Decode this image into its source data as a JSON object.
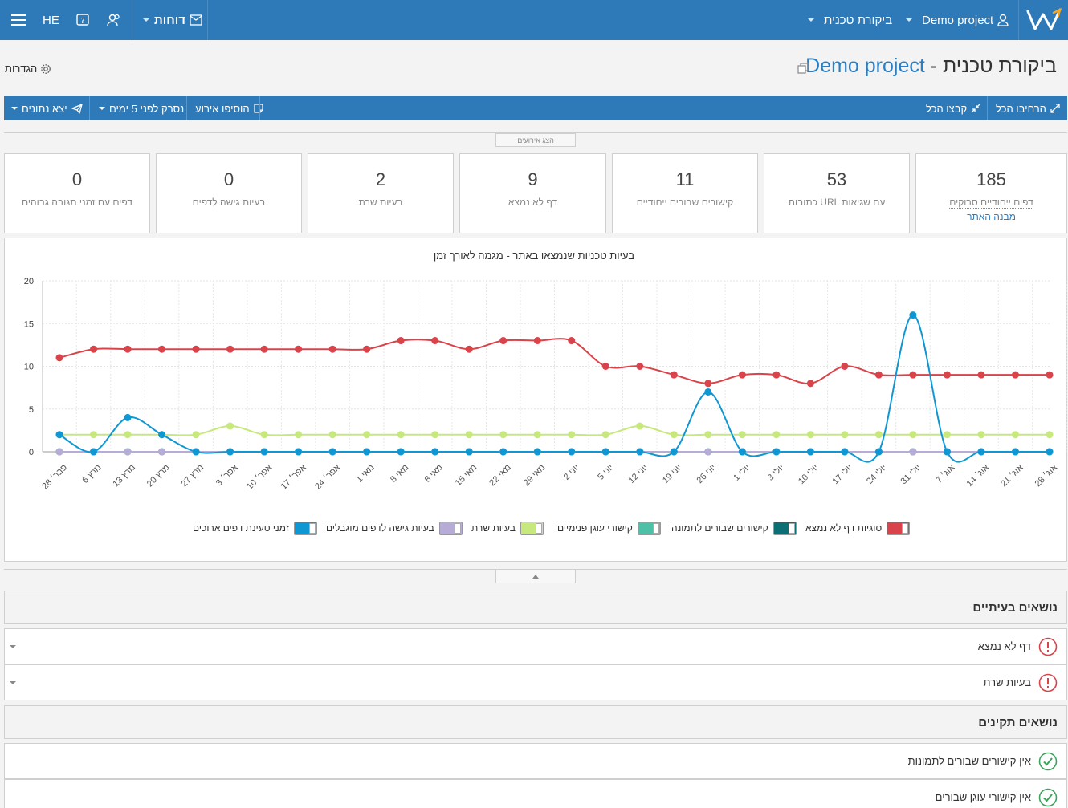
{
  "topbar": {
    "lang": "HE",
    "reports_label": "דוחות",
    "module_label": "ביקורת טכנית",
    "project_label": "Demo project"
  },
  "page": {
    "title_project": "Demo project",
    "title_rest": "ביקורת טכנית - ",
    "settings_label": "הגדרות"
  },
  "actions": {
    "export_label": "יצא נתונים",
    "crawl_label": "נסרק לפני 5 ימים",
    "add_event_label": "הוסיפו אירוע",
    "collapse_all_label": "קבצו הכל",
    "expand_all_label": "הרחיבו הכל"
  },
  "events_toggle_label": "הצג אירועים",
  "stats": [
    {
      "value": "185",
      "label": "דפים ייחודיים סרוקים",
      "sublabel": "מבנה האתר"
    },
    {
      "value": "53",
      "label": "כתובות URL עם שגיאות"
    },
    {
      "value": "11",
      "label": "קישורים שבורים ייחודיים"
    },
    {
      "value": "9",
      "label": "דף לא נמצא"
    },
    {
      "value": "2",
      "label": "בעיות שרת"
    },
    {
      "value": "0",
      "label": "בעיות גישה לדפים"
    },
    {
      "value": "0",
      "label": "דפים עם זמני תגובה גבוהים"
    }
  ],
  "chart_data": {
    "type": "line",
    "title": "בעיות טכניות שנמצאו באתר - מגמה לאורך זמן",
    "ylim": [
      0,
      20
    ],
    "yticks": [
      0,
      5,
      10,
      15,
      20
    ],
    "grid": true,
    "legend_position": "bottom",
    "x": [
      "פבר׳ 28",
      "מרץ 6",
      "מרץ 13",
      "מרץ 20",
      "מרץ 27",
      "אפר׳ 3",
      "אפר׳ 10",
      "אפר׳ 17",
      "אפר׳ 24",
      "מאי 1",
      "מאי 8",
      "מאי 8",
      "מאי 15",
      "מאי 22",
      "מאי 29",
      "יוני 2",
      "יוני 5",
      "יוני 12",
      "יוני 19",
      "יוני 26",
      "יולי 1",
      "יולי 3",
      "יולי 10",
      "יולי 17",
      "יולי 24",
      "יולי 31",
      "אוג׳ 7",
      "אוג׳ 14",
      "אוג׳ 21",
      "אוג׳ 28"
    ],
    "series": [
      {
        "name": "סוגיות דף לא נמצא",
        "color": "#d9434a",
        "values": [
          11,
          12,
          12,
          12,
          12,
          12,
          12,
          12,
          12,
          12,
          13,
          13,
          12,
          13,
          13,
          13,
          10,
          10,
          9,
          8,
          9,
          9,
          8,
          10,
          9,
          9,
          9,
          9,
          9,
          9
        ]
      },
      {
        "name": "קישורים שבורים לתמונה",
        "color": "#0b6f74",
        "values": [
          0,
          0,
          0,
          0,
          0,
          0,
          0,
          0,
          0,
          0,
          0,
          0,
          0,
          0,
          0,
          0,
          0,
          0,
          0,
          0,
          0,
          0,
          0,
          0,
          0,
          0,
          0,
          0,
          0,
          0
        ]
      },
      {
        "name": "קישורי עוגן פנימיים",
        "color": "#4fc0a8",
        "values": [
          0,
          0,
          0,
          0,
          0,
          0,
          0,
          0,
          0,
          0,
          0,
          0,
          0,
          0,
          0,
          0,
          0,
          0,
          0,
          0,
          0,
          0,
          0,
          0,
          0,
          0,
          0,
          0,
          0,
          0
        ]
      },
      {
        "name": "בעיות שרת",
        "color": "#c6e87c",
        "values": [
          2,
          2,
          2,
          2,
          2,
          3,
          2,
          2,
          2,
          2,
          2,
          2,
          2,
          2,
          2,
          2,
          2,
          3,
          2,
          2,
          2,
          2,
          2,
          2,
          2,
          2,
          2,
          2,
          2,
          2
        ]
      },
      {
        "name": "בעיות גישה לדפים מוגבלים",
        "color": "#b6acd6",
        "values": [
          0,
          0,
          0,
          0,
          0,
          0,
          0,
          0,
          0,
          0,
          0,
          0,
          0,
          0,
          0,
          0,
          0,
          0,
          0,
          0,
          0,
          0,
          0,
          0,
          0,
          0,
          0,
          0,
          0,
          0
        ]
      },
      {
        "name": "זמני טעינת דפים ארוכים",
        "color": "#0f97d3",
        "values": [
          2,
          0,
          4,
          2,
          0,
          0,
          0,
          0,
          0,
          0,
          0,
          0,
          0,
          0,
          0,
          0,
          0,
          0,
          0,
          7,
          0,
          0,
          0,
          0,
          0,
          16,
          0,
          0,
          0,
          0
        ]
      }
    ]
  },
  "sections": {
    "issues_title": "נושאים בעיתיים",
    "issues": [
      "דף לא נמצא",
      "בעיות שרת"
    ],
    "ok_title": "נושאים תקינים",
    "ok": [
      "אין קישורים שבורים לתמונות",
      "אין קישורי עוגן שבורים"
    ]
  },
  "colors": {
    "brand": "#2e7ab8",
    "link": "#2a7ec3",
    "error": "#d9434a",
    "ok": "#3aa35c"
  }
}
